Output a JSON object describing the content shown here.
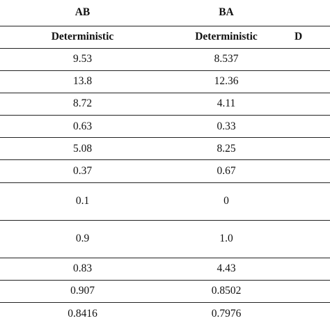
{
  "table": {
    "groups": [
      "AB",
      "BA",
      ""
    ],
    "subheaders": [
      "Deterministic",
      "Deterministic",
      "D"
    ],
    "rows": [
      [
        "9.53",
        "8.537"
      ],
      [
        "13.8",
        "12.36"
      ],
      [
        "8.72",
        "4.11"
      ],
      [
        "0.63",
        "0.33"
      ],
      [
        "5.08",
        "8.25"
      ],
      [
        "0.37",
        "0.67"
      ],
      [
        "0.1",
        "0"
      ],
      [
        "0.9",
        "1.0"
      ],
      [
        "0.83",
        "4.43"
      ],
      [
        "0.907",
        "0.8502"
      ],
      [
        "0.8416",
        "0.7976"
      ]
    ]
  }
}
